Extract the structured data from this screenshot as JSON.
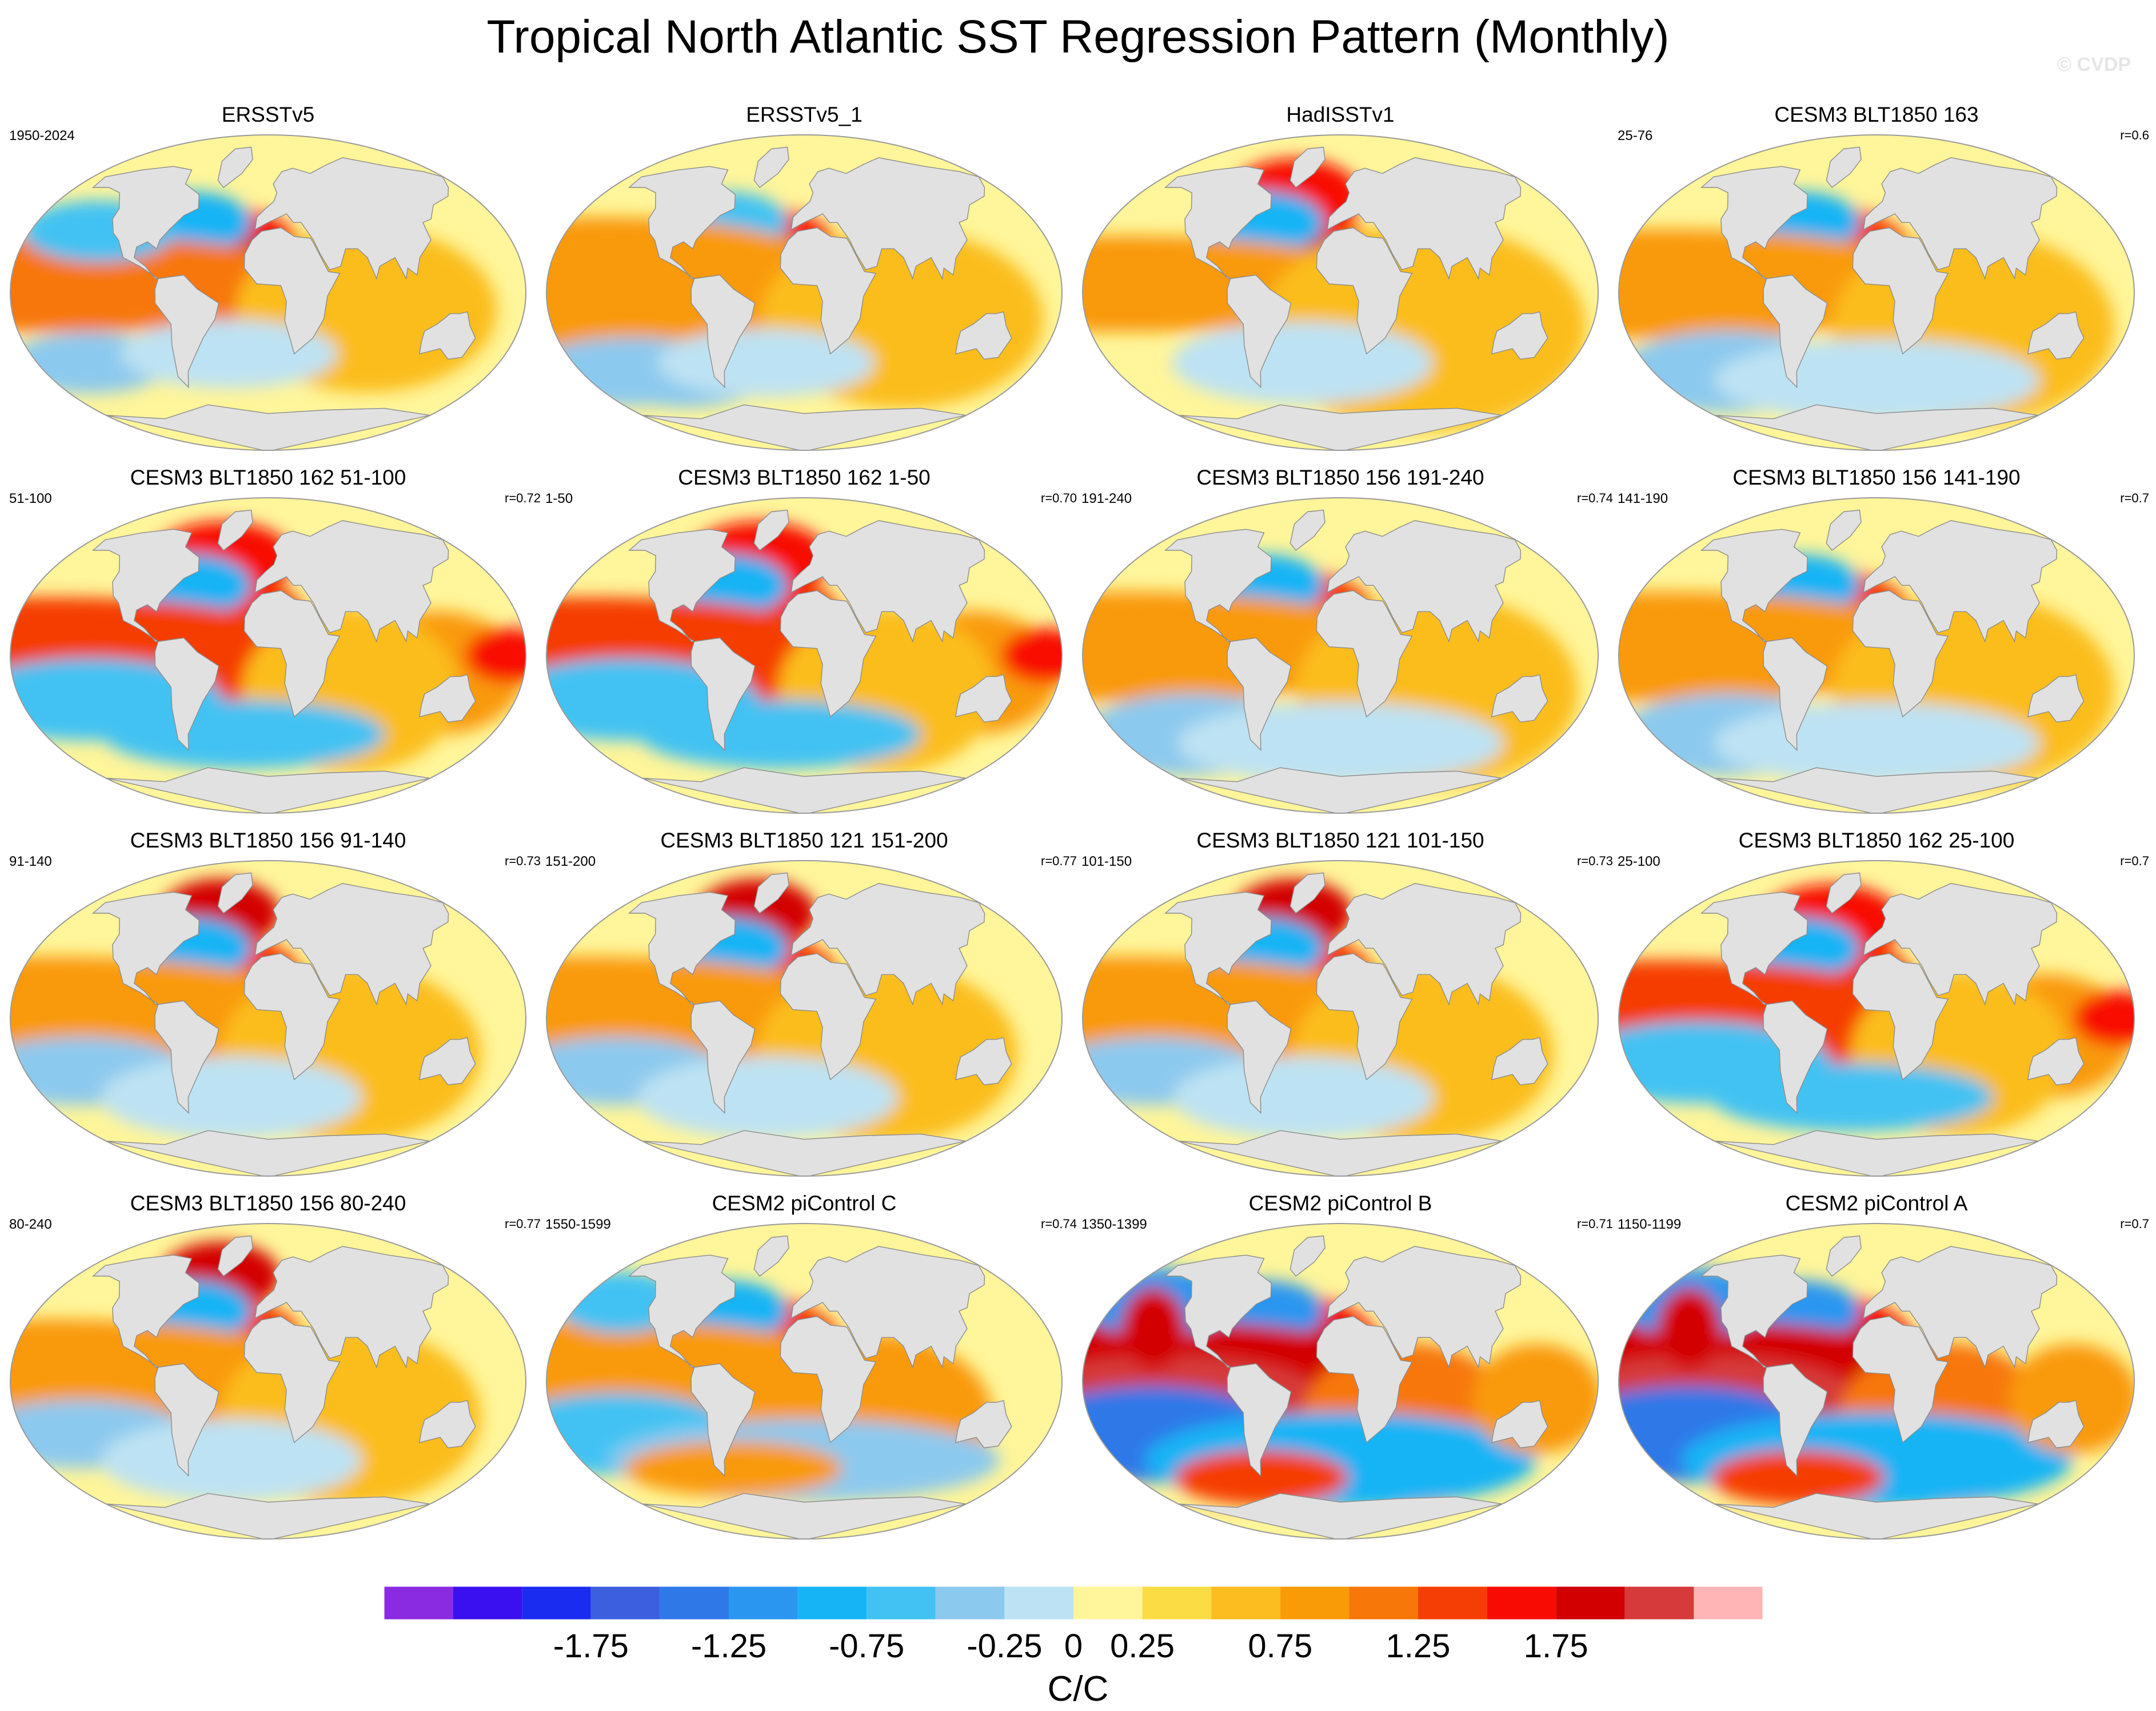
{
  "title": "Tropical North Atlantic SST Regression Pattern (Monthly)",
  "watermark": "© CVDP",
  "panels": [
    {
      "title": "ERSSTv5",
      "years": "1950-2024",
      "r": "",
      "pattern": "obs-a"
    },
    {
      "title": "ERSSTv5_1",
      "years": "",
      "r": "",
      "pattern": "obs-b"
    },
    {
      "title": "HadISSTv1",
      "years": "",
      "r": "",
      "pattern": "obs-c"
    },
    {
      "title": "CESM3 BLT1850 163",
      "years": "25-76",
      "r": "r=0.6",
      "pattern": "model-a"
    },
    {
      "title": "CESM3 BLT1850 162 51-100",
      "years": "51-100",
      "r": "r=0.72",
      "pattern": "model-b"
    },
    {
      "title": "CESM3 BLT1850 162 1-50",
      "years": "1-50",
      "r": "r=0.70",
      "pattern": "model-b"
    },
    {
      "title": "CESM3 BLT1850 156 191-240",
      "years": "191-240",
      "r": "r=0.74",
      "pattern": "model-a"
    },
    {
      "title": "CESM3 BLT1850 156 141-190",
      "years": "141-190",
      "r": "r=0.7",
      "pattern": "model-a"
    },
    {
      "title": "CESM3 BLT1850 156 91-140",
      "years": "91-140",
      "r": "r=0.73",
      "pattern": "model-c"
    },
    {
      "title": "CESM3 BLT1850 121 151-200",
      "years": "151-200",
      "r": "r=0.77",
      "pattern": "model-c"
    },
    {
      "title": "CESM3 BLT1850 121 101-150",
      "years": "101-150",
      "r": "r=0.73",
      "pattern": "model-c"
    },
    {
      "title": "CESM3 BLT1850 162 25-100",
      "years": "25-100",
      "r": "r=0.7",
      "pattern": "model-b"
    },
    {
      "title": "CESM3 BLT1850 156 80-240",
      "years": "80-240",
      "r": "r=0.77",
      "pattern": "model-c"
    },
    {
      "title": "CESM2 piControl C",
      "years": "1550-1599",
      "r": "r=0.74",
      "pattern": "cesm2"
    },
    {
      "title": "CESM2 piControl B",
      "years": "1350-1399",
      "r": "r=0.71",
      "pattern": "cesm2-strong"
    },
    {
      "title": "CESM2 piControl A",
      "years": "1150-1199",
      "r": "r=0.7",
      "pattern": "cesm2-strong"
    }
  ],
  "chart_data": {
    "type": "heatmap",
    "title": "Tropical North Atlantic SST Regression Pattern (Monthly)",
    "units": "C/C",
    "projection": "Robinson (global)",
    "colorbar": {
      "levels": [
        -2.0,
        -1.75,
        -1.5,
        -1.25,
        -1.0,
        -0.75,
        -0.5,
        -0.25,
        0,
        0.25,
        0.5,
        0.75,
        1.0,
        1.25,
        1.5,
        1.75,
        2.0
      ],
      "tick_labels": [
        "-1.75",
        "-1.25",
        "-0.75",
        "-0.25",
        "0",
        "0.25",
        "0.75",
        "1.25",
        "1.75"
      ],
      "tick_values": [
        -1.75,
        -1.25,
        -0.75,
        -0.25,
        0,
        0.25,
        0.75,
        1.25,
        1.75
      ],
      "colors": [
        "#8a2be2",
        "#3a10f0",
        "#1a2cf0",
        "#3c5fe0",
        "#2f78e8",
        "#2a96f0",
        "#16b4f5",
        "#42c2f3",
        "#8cc9ee",
        "#bde2f3",
        "#fff59a",
        "#fcdc45",
        "#fbbd1f",
        "#f99a07",
        "#f77708",
        "#f53e05",
        "#f80b02",
        "#d30000",
        "#d63a3a",
        "#ffb5b5"
      ]
    },
    "panels": [
      {
        "name": "ERSSTv5",
        "years": "1950-2024",
        "r": null
      },
      {
        "name": "ERSSTv5_1",
        "years": null,
        "r": null
      },
      {
        "name": "HadISSTv1",
        "years": null,
        "r": null
      },
      {
        "name": "CESM3 BLT1850 163",
        "years": "25-76",
        "r": 0.6
      },
      {
        "name": "CESM3 BLT1850 162 51-100",
        "years": "51-100",
        "r": 0.72
      },
      {
        "name": "CESM3 BLT1850 162 1-50",
        "years": "1-50",
        "r": 0.7
      },
      {
        "name": "CESM3 BLT1850 156 191-240",
        "years": "191-240",
        "r": 0.74
      },
      {
        "name": "CESM3 BLT1850 156 141-190",
        "years": "141-190",
        "r": 0.7
      },
      {
        "name": "CESM3 BLT1850 156 91-140",
        "years": "91-140",
        "r": 0.73
      },
      {
        "name": "CESM3 BLT1850 121 151-200",
        "years": "151-200",
        "r": 0.77
      },
      {
        "name": "CESM3 BLT1850 121 101-150",
        "years": "101-150",
        "r": 0.73
      },
      {
        "name": "CESM3 BLT1850 162 25-100",
        "years": "25-100",
        "r": 0.7
      },
      {
        "name": "CESM3 BLT1850 156 80-240",
        "years": "80-240",
        "r": 0.77
      },
      {
        "name": "CESM2 piControl C",
        "years": "1550-1599",
        "r": 0.74
      },
      {
        "name": "CESM2 piControl B",
        "years": "1350-1399",
        "r": 0.71
      },
      {
        "name": "CESM2 piControl A",
        "years": "1150-1199",
        "r": 0.7
      }
    ]
  }
}
